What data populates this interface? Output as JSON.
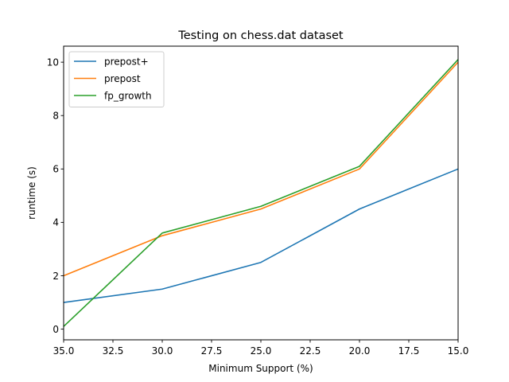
{
  "chart_data": {
    "type": "line",
    "title": "Testing on chess.dat dataset",
    "xlabel": "Minimum Support (%)",
    "ylabel": "runtime (s)",
    "x": [
      35,
      30,
      25,
      20,
      15
    ],
    "xlim": [
      35,
      15
    ],
    "ylim": [
      -0.4,
      10.6
    ],
    "x_ticks": [
      35.0,
      32.5,
      30.0,
      27.5,
      25.0,
      22.5,
      20.0,
      17.5,
      15.0
    ],
    "x_tick_labels": [
      "35.0",
      "32.5",
      "30.0",
      "27.5",
      "25.0",
      "22.5",
      "20.0",
      "17.5",
      "15.0"
    ],
    "y_ticks": [
      0,
      2,
      4,
      6,
      8,
      10
    ],
    "y_tick_labels": [
      "0",
      "2",
      "4",
      "6",
      "8",
      "10"
    ],
    "grid": false,
    "legend_position": "top-left",
    "series": [
      {
        "name": "prepost+",
        "color": "#1f77b4",
        "values": [
          1.0,
          1.5,
          2.5,
          4.5,
          6.0
        ]
      },
      {
        "name": "prepost",
        "color": "#ff7f0e",
        "values": [
          2.0,
          3.5,
          4.5,
          6.0,
          10.0
        ]
      },
      {
        "name": "fp_growth",
        "color": "#2ca02c",
        "values": [
          0.1,
          3.6,
          4.6,
          6.1,
          10.1
        ]
      }
    ]
  }
}
